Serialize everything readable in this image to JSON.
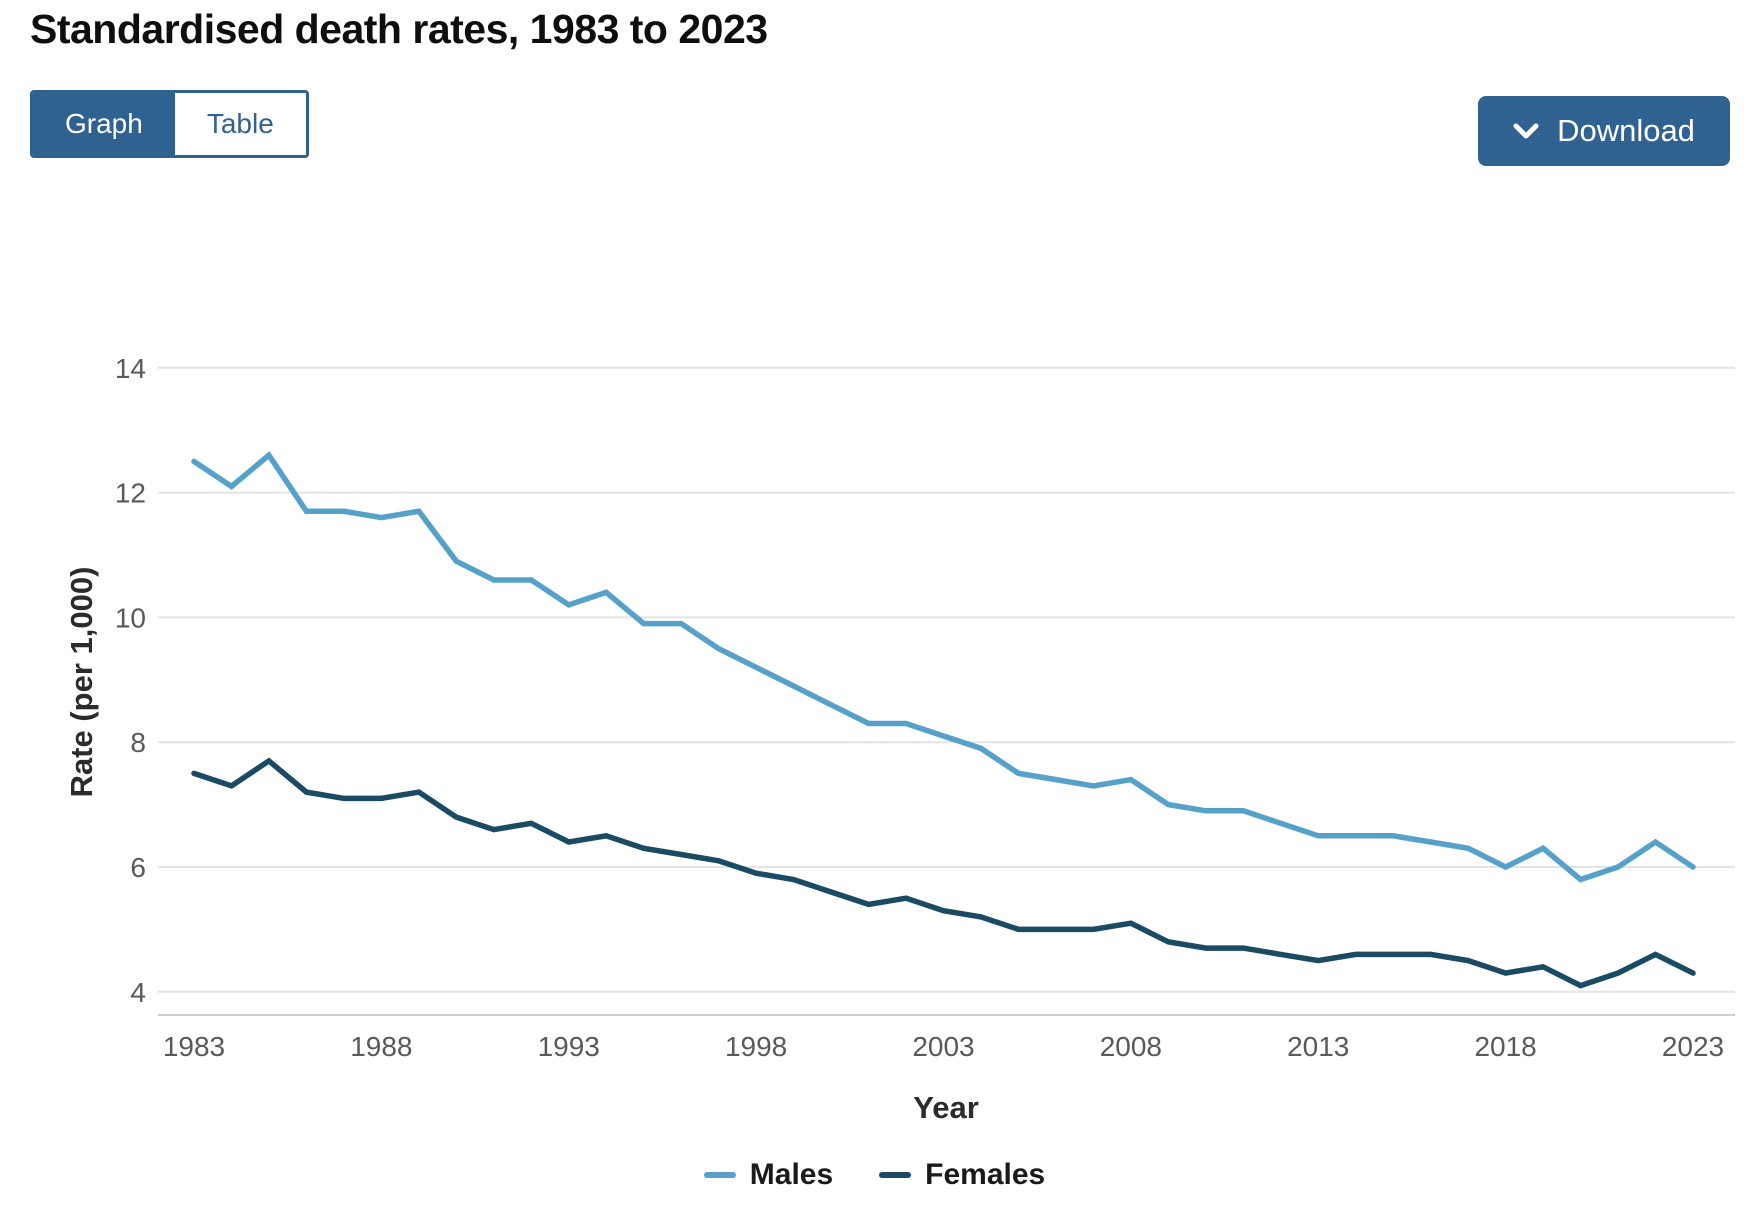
{
  "page": {
    "title": "Standardised death rates, 1983 to 2023"
  },
  "toolbar": {
    "graph_label": "Graph",
    "table_label": "Table",
    "download_label": "Download"
  },
  "colors": {
    "accent_blue": "#2F6191",
    "males_line": "#56A1C9",
    "females_line": "#1B4A63",
    "grid": "#E4E4E4",
    "axis_baseline": "#CFCFCF",
    "tick_text": "#595959",
    "title_text": "#0E0E0E",
    "axis_title_text": "#2B2B2B",
    "legend_text": "#1A1A1A"
  },
  "chart_data": {
    "type": "line",
    "title": "Standardised death rates, 1983 to 2023",
    "xlabel": "Year",
    "ylabel": "Rate (per 1,000)",
    "grid": "horizontal",
    "legend_position": "bottom",
    "ylim": [
      3.6,
      14.6
    ],
    "yticks": [
      4,
      6,
      8,
      10,
      12,
      14
    ],
    "xticks": [
      1983,
      1988,
      1993,
      1998,
      2003,
      2008,
      2013,
      2018,
      2023
    ],
    "x": [
      1983,
      1984,
      1985,
      1986,
      1987,
      1988,
      1989,
      1990,
      1991,
      1992,
      1993,
      1994,
      1995,
      1996,
      1997,
      1998,
      1999,
      2000,
      2001,
      2002,
      2003,
      2004,
      2005,
      2006,
      2007,
      2008,
      2009,
      2010,
      2011,
      2012,
      2013,
      2014,
      2015,
      2016,
      2017,
      2018,
      2019,
      2020,
      2021,
      2022,
      2023
    ],
    "series": [
      {
        "name": "Males",
        "color": "#56A1C9",
        "values": [
          12.5,
          12.1,
          12.6,
          11.7,
          11.7,
          11.6,
          11.7,
          10.9,
          10.6,
          10.6,
          10.2,
          10.4,
          9.9,
          9.9,
          9.5,
          9.2,
          8.9,
          8.6,
          8.3,
          8.3,
          8.1,
          7.9,
          7.5,
          7.4,
          7.3,
          7.4,
          7.0,
          6.9,
          6.9,
          6.7,
          6.5,
          6.5,
          6.5,
          6.4,
          6.3,
          6.0,
          6.3,
          5.8,
          6.0,
          6.4,
          6.0
        ]
      },
      {
        "name": "Females",
        "color": "#1B4A63",
        "values": [
          7.5,
          7.3,
          7.7,
          7.2,
          7.1,
          7.1,
          7.2,
          6.8,
          6.6,
          6.7,
          6.4,
          6.5,
          6.3,
          6.2,
          6.1,
          5.9,
          5.8,
          5.6,
          5.4,
          5.5,
          5.3,
          5.2,
          5.0,
          5.0,
          5.0,
          5.1,
          4.8,
          4.7,
          4.7,
          4.6,
          4.5,
          4.6,
          4.6,
          4.6,
          4.5,
          4.3,
          4.4,
          4.1,
          4.3,
          4.6,
          4.3
        ]
      }
    ]
  }
}
